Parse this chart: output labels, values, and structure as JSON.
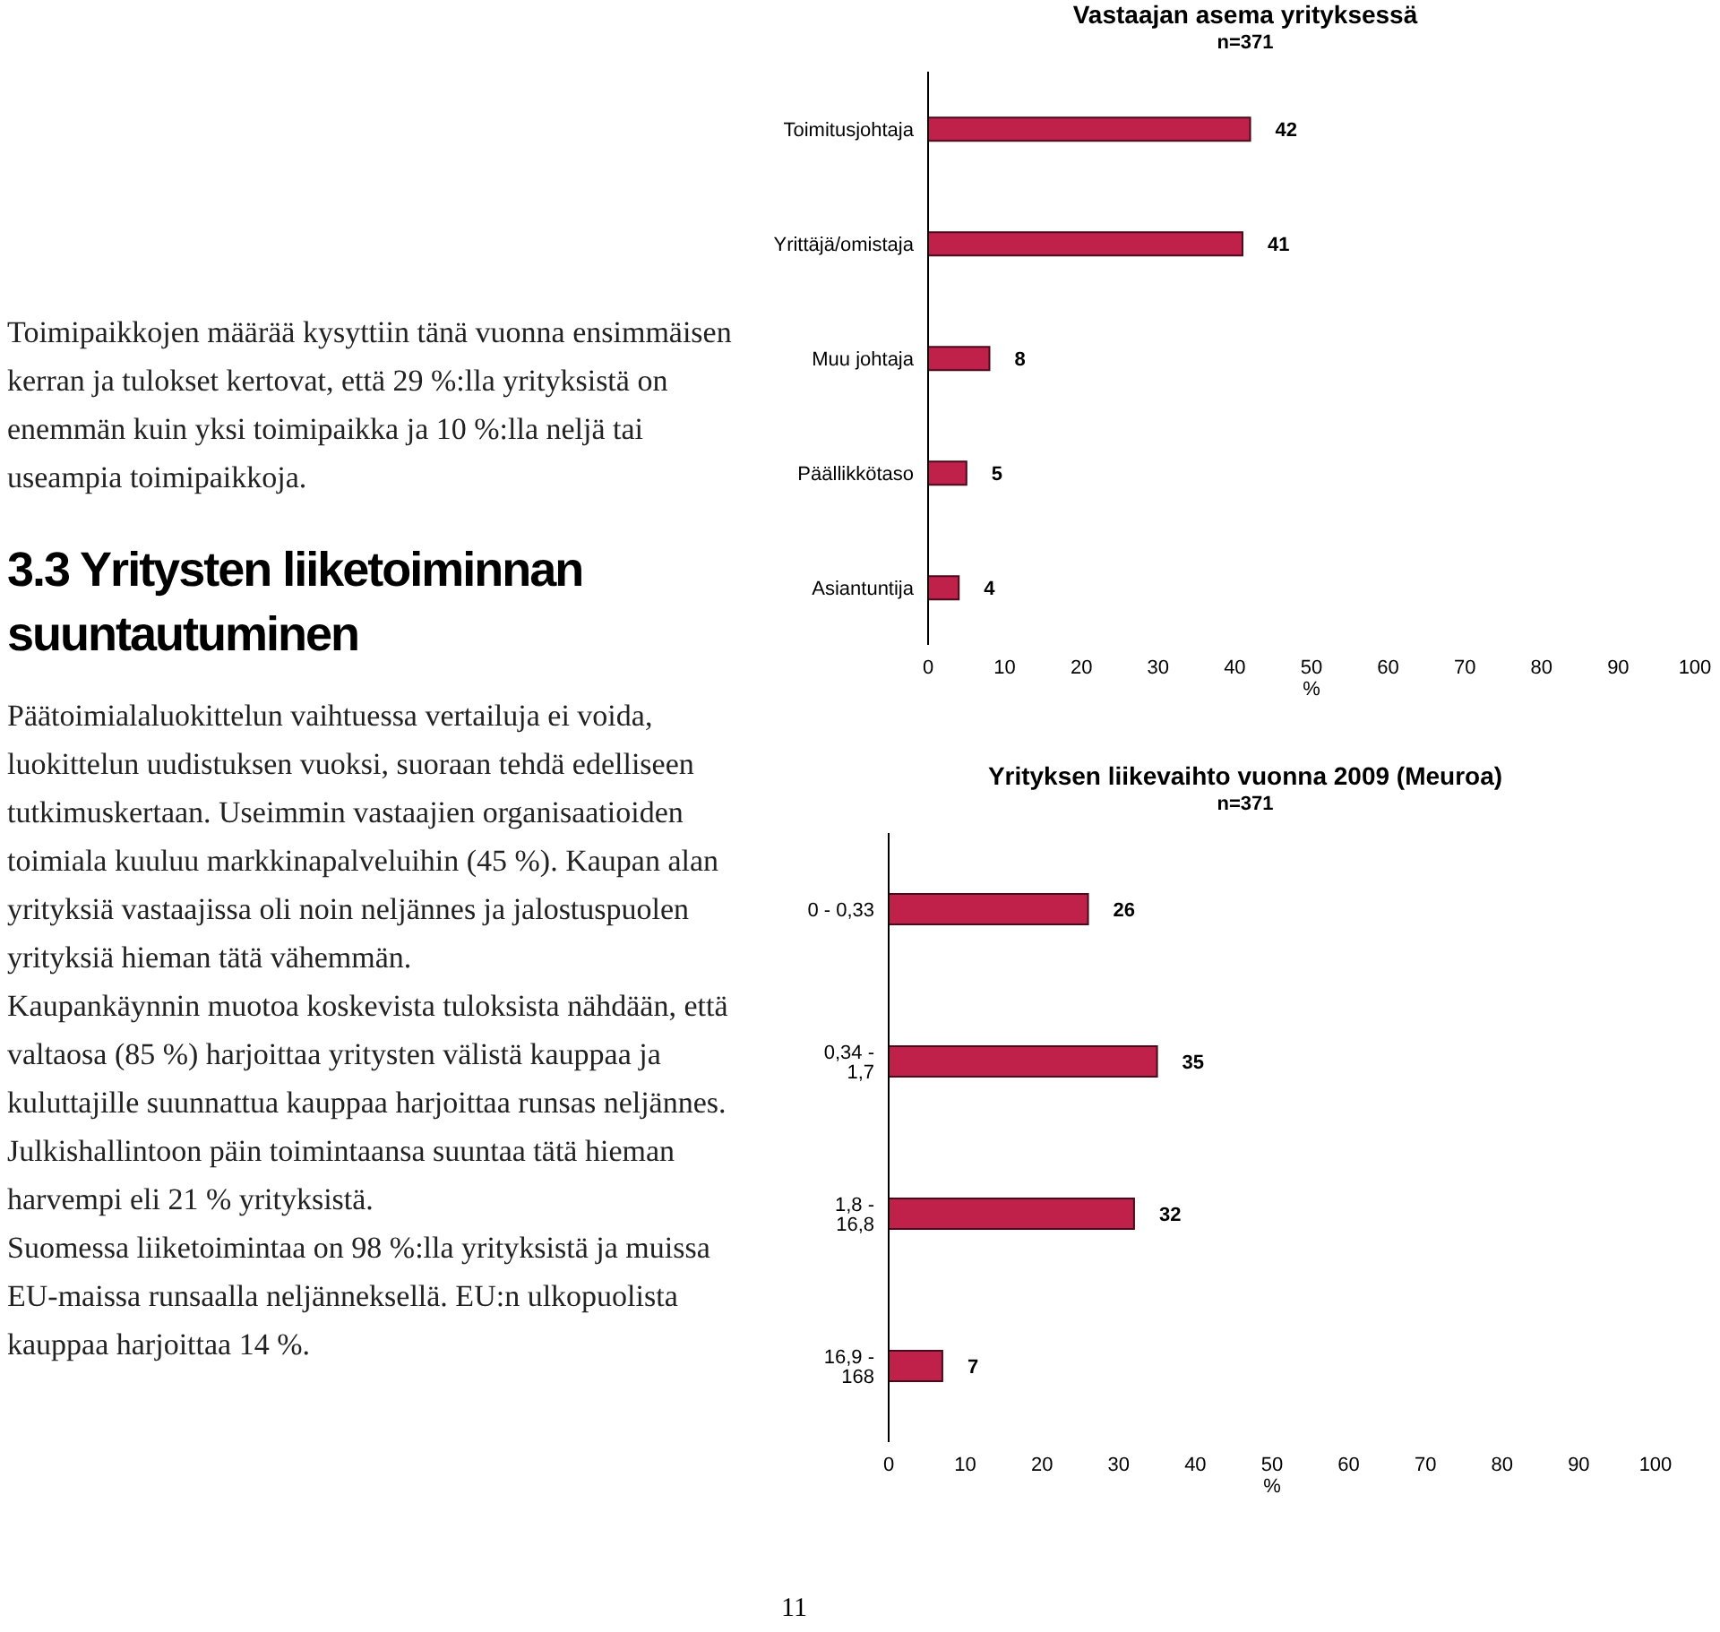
{
  "chart_data": [
    {
      "type": "bar",
      "orientation": "horizontal",
      "title": "Vastaajan asema yrityksessä",
      "subtitle": "n=371",
      "xlabel": "%",
      "categories": [
        "Toimitusjohtaja",
        "Yrittäjä/omistaja",
        "Muu johtaja",
        "Päällikkötaso",
        "Asiantuntija"
      ],
      "values": [
        42,
        41,
        8,
        5,
        4
      ],
      "color": "#c0214b",
      "xlim": [
        0,
        100
      ],
      "xticks": [
        0,
        10,
        20,
        30,
        40,
        50,
        60,
        70,
        80,
        90,
        100
      ],
      "data_labels": true
    },
    {
      "type": "other",
      "title": "3.3 Yritysten liiketoiminnan suuntautuminen",
      "annotations": [
        "Toimipaikkojen määrää kysyttiin tänä vuonna ensimmäisen kerran ja tulokset kertovat, että 29 %:lla yrityksistä on enemmän kuin yksi toimipaikka ja 10 %:lla neljä tai useampia toimipaikkoja.",
        "Päätoimialaluokittelun vaihtuessa vertailuja ei voida, luokittelun uudistuksen vuoksi, suoraan tehdä edelliseen tutkimuskertaan. Useimmin vastaajien organisaatioiden toimiala kuuluu markkinapalveluihin (45 %). Kaupan alan yrityksiä vastaajissa oli noin neljännes ja jalostuspuolen yrityksiä hieman tätä vähemmän.",
        "Kaupankäynnin muotoa koskevista tuloksista nähdään, että valtaosa (85 %) harjoittaa yritysten välistä kauppaa ja kuluttajille suunnattua kauppaa harjoittaa runsas neljännes. Julkishallintoon päin toimintaansa suuntaa tätä hieman harvempi eli 21 % yrityksistä.",
        "Suomessa liiketoimintaa on 98 %:lla yrityksistä ja muissa EU-maissa runsaalla neljänneksellä. EU:n ulkopuolista kauppaa harjoittaa 14 %.",
        "11"
      ]
    },
    {
      "type": "bar",
      "orientation": "horizontal",
      "title": "Yrityksen liikevaihto vuonna 2009 (Meuroa)",
      "subtitle": "n=371",
      "xlabel": "%",
      "categories": [
        "0 - 0,33",
        "0,34 - 1,7",
        "1,8 - 16,8",
        "16,9 - 168"
      ],
      "values": [
        26,
        35,
        32,
        7
      ],
      "color": "#c0214b",
      "xlim": [
        0,
        100
      ],
      "xticks": [
        0,
        10,
        20,
        30,
        40,
        50,
        60,
        70,
        80,
        90,
        100
      ],
      "data_labels": true
    }
  ]
}
